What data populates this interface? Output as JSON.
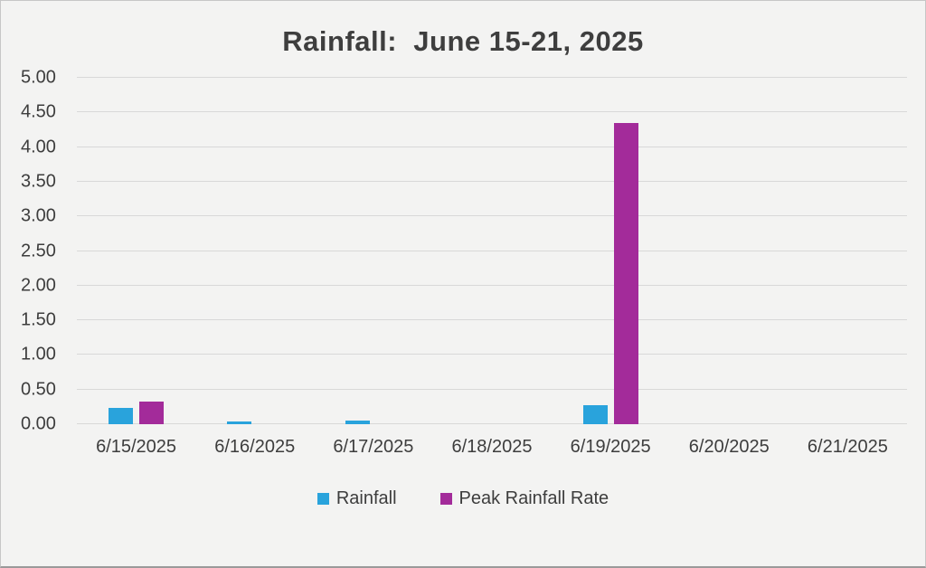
{
  "chart_data": {
    "type": "bar",
    "title": "Rainfall:  June 15-21, 2025",
    "categories": [
      "6/15/2025",
      "6/16/2025",
      "6/17/2025",
      "6/18/2025",
      "6/19/2025",
      "6/20/2025",
      "6/21/2025"
    ],
    "series": [
      {
        "name": "Rainfall",
        "color": "#29a3dc",
        "values": [
          0.23,
          0.04,
          0.05,
          0,
          0.27,
          0,
          0
        ]
      },
      {
        "name": "Peak Rainfall Rate",
        "color": "#a32b9a",
        "values": [
          0.33,
          0,
          0,
          0,
          4.35,
          0,
          0
        ]
      }
    ],
    "ylim": [
      0,
      5
    ],
    "ytick_step": 0.5,
    "ytick_labels": [
      "0.00",
      "0.50",
      "1.00",
      "1.50",
      "2.00",
      "2.50",
      "3.00",
      "3.50",
      "4.00",
      "4.50",
      "5.00"
    ],
    "grid": true,
    "legend_position": "bottom",
    "colors": {
      "background": "#f3f3f2",
      "gridline": "#d8d8d8",
      "text": "#3d3d3d"
    }
  }
}
